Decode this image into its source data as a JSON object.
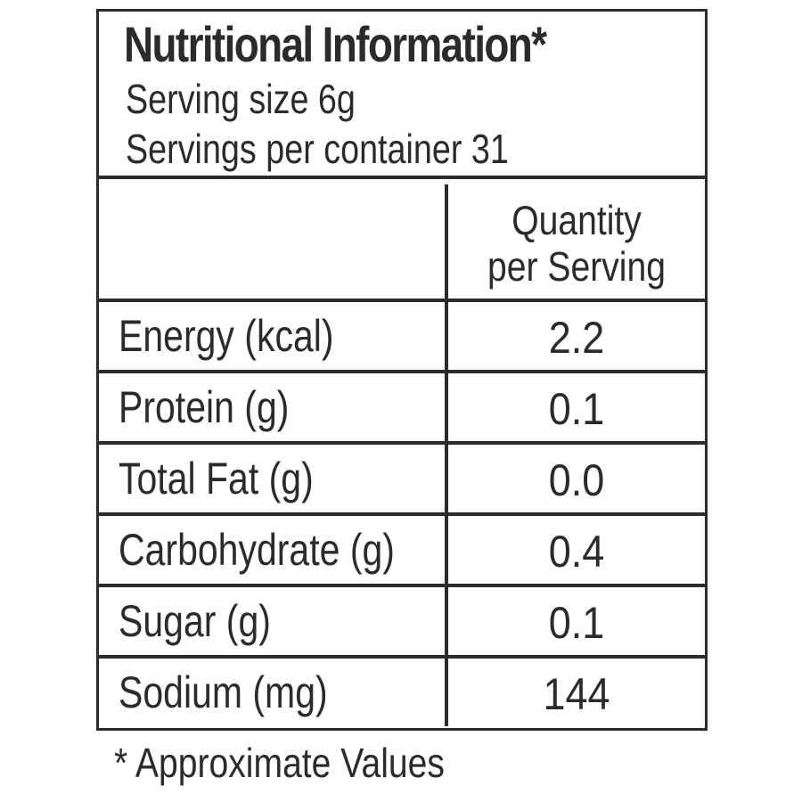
{
  "label": {
    "title": "Nutritional Information*",
    "serving_size": "Serving size 6g",
    "servings_per_container": "Servings per container 31"
  },
  "table": {
    "column_header_line1": "Quantity",
    "column_header_line2": "per Serving",
    "rows": [
      {
        "nutrient": "Energy (kcal)",
        "quantity": "2.2"
      },
      {
        "nutrient": "Protein (g)",
        "quantity": "0.1"
      },
      {
        "nutrient": "Total Fat (g)",
        "quantity": "0.0"
      },
      {
        "nutrient": "Carbohydrate (g)",
        "quantity": "0.4"
      },
      {
        "nutrient": "Sugar (g)",
        "quantity": "0.1"
      },
      {
        "nutrient": "Sodium (mg)",
        "quantity": "144"
      }
    ]
  },
  "footnote": "* Approximate Values"
}
